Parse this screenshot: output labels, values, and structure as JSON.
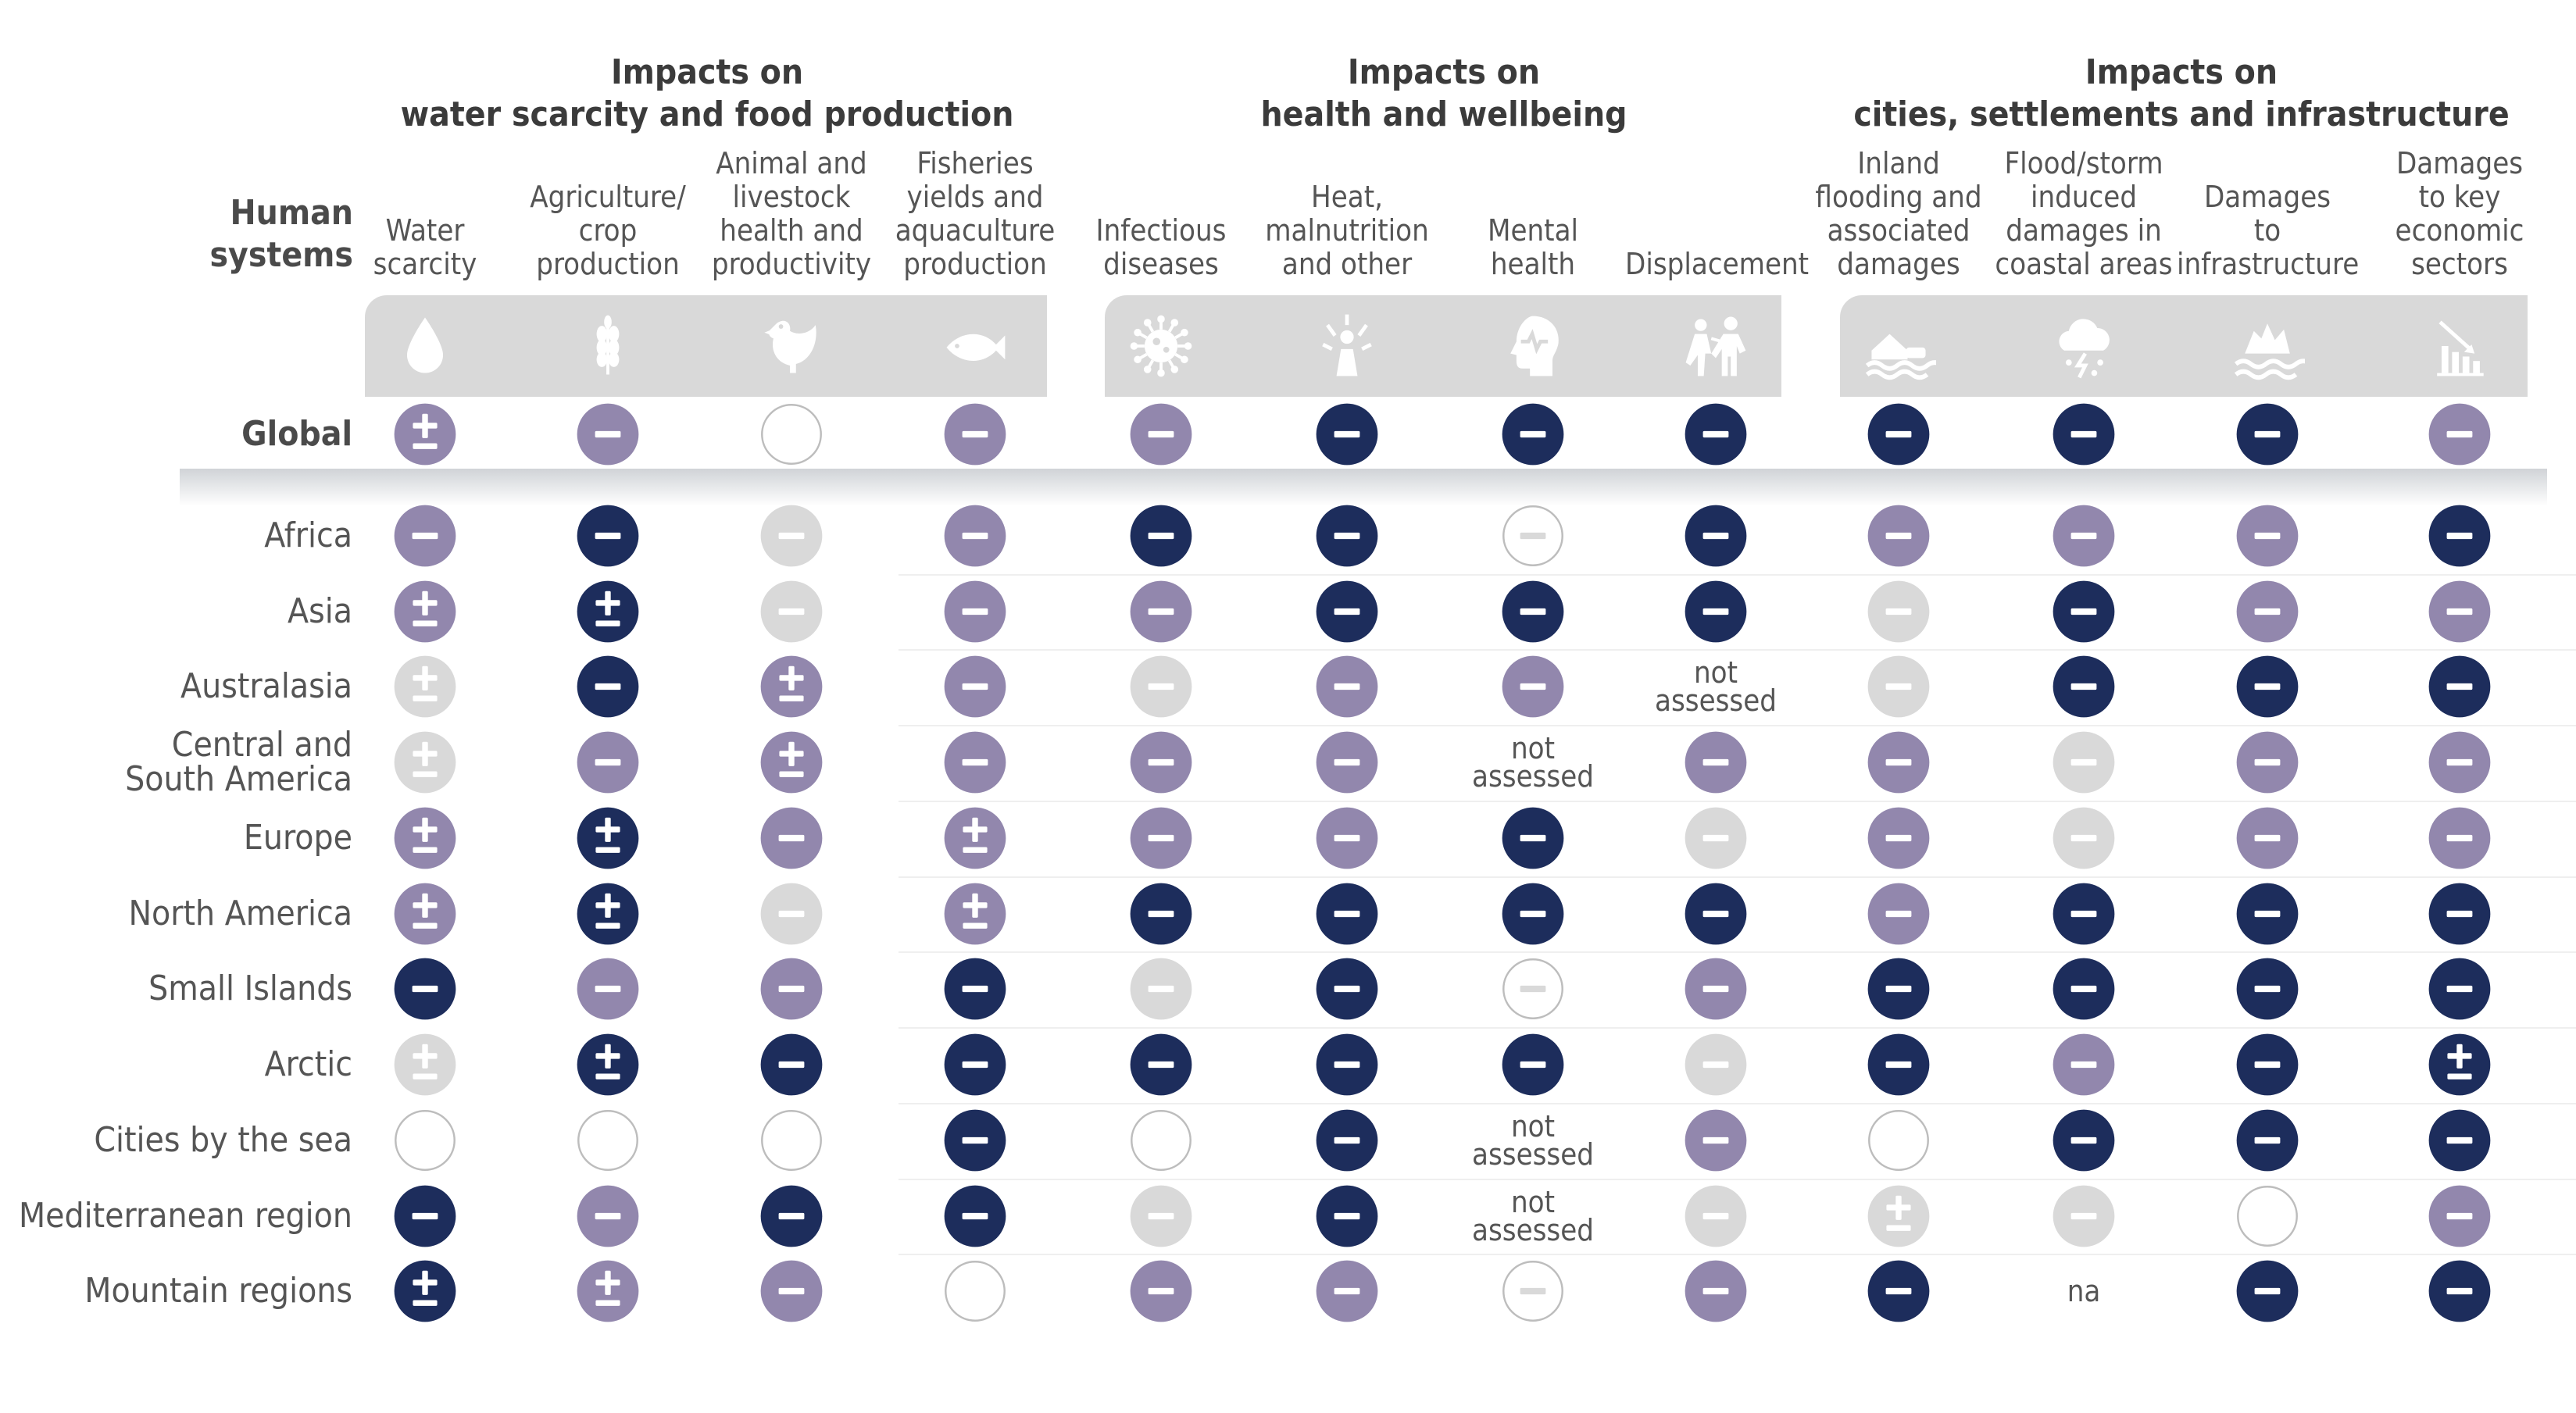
{
  "colors": {
    "strong_negative": "#1d2d5c",
    "moderate": "#9287ad",
    "low_confidence": "#d9d9d9",
    "open_circle_stroke": "#bdbdbd",
    "icon_bar": "#d9d9d9",
    "icon_glyph": "#ffffff"
  },
  "row_header": "Human\nsystems",
  "categories": [
    {
      "title_line1": "Impacts on",
      "title_line2": "water scarcity and food production"
    },
    {
      "title_line1": "Impacts on",
      "title_line2": "health and wellbeing"
    },
    {
      "title_line1": "Impacts on",
      "title_line2": "cities, settlements and infrastructure"
    }
  ],
  "columns": [
    {
      "label": "Water\nscarcity",
      "icon": "water-drop-icon"
    },
    {
      "label": "Agriculture/\ncrop\nproduction",
      "icon": "wheat-icon"
    },
    {
      "label": "Animal and\nlivestock\nhealth and\nproductivity",
      "icon": "chicken-icon"
    },
    {
      "label": "Fisheries\nyields and\naquaculture\nproduction",
      "icon": "fish-icon"
    },
    {
      "label": "Infectious\ndiseases",
      "icon": "virus-icon"
    },
    {
      "label": "Heat,\nmalnutrition\nand other",
      "icon": "heat-stress-icon"
    },
    {
      "label": "Mental\nhealth",
      "icon": "mental-health-icon"
    },
    {
      "label": "Displacement",
      "icon": "displacement-icon"
    },
    {
      "label": "Inland\nflooding and\nassociated\ndamages",
      "icon": "inland-flood-icon"
    },
    {
      "label": "Flood/storm\ninduced\ndamages in\ncoastal areas",
      "icon": "storm-cloud-icon"
    },
    {
      "label": "Damages\nto\ninfrastructure",
      "icon": "infrastructure-damage-icon"
    },
    {
      "label": "Damages\nto key\neconomic\nsectors",
      "icon": "declining-bars-icon"
    }
  ],
  "rows": [
    {
      "region": "Global",
      "cells": [
        "pm-mod",
        "m-mod",
        "open",
        "m-mod",
        "m-mod",
        "m-dark",
        "m-dark",
        "m-dark",
        "m-dark",
        "m-dark",
        "m-dark",
        "m-mod"
      ]
    },
    {
      "region": "Africa",
      "cells": [
        "m-mod",
        "m-dark",
        "m-light",
        "m-mod",
        "m-dark",
        "m-dark",
        "m-open",
        "m-dark",
        "m-mod",
        "m-mod",
        "m-mod",
        "m-dark"
      ]
    },
    {
      "region": "Asia",
      "cells": [
        "pm-mod",
        "pm-dark",
        "m-light",
        "m-mod",
        "m-mod",
        "m-dark",
        "m-dark",
        "m-dark",
        "m-light",
        "m-dark",
        "m-mod",
        "m-mod"
      ]
    },
    {
      "region": "Australasia",
      "cells": [
        "pm-light",
        "m-dark",
        "pm-mod",
        "m-mod",
        "m-light",
        "m-mod",
        "m-mod",
        "na",
        "m-light",
        "m-dark",
        "m-dark",
        "m-dark"
      ]
    },
    {
      "region": "Central and\nSouth America",
      "cells": [
        "pm-light",
        "m-mod",
        "pm-mod",
        "m-mod",
        "m-mod",
        "m-mod",
        "na",
        "m-mod",
        "m-mod",
        "m-light",
        "m-mod",
        "m-mod"
      ]
    },
    {
      "region": "Europe",
      "cells": [
        "pm-mod",
        "pm-dark",
        "m-mod",
        "pm-mod",
        "m-mod",
        "m-mod",
        "m-dark",
        "m-light",
        "m-mod",
        "m-light",
        "m-mod",
        "m-mod"
      ]
    },
    {
      "region": "North America",
      "cells": [
        "pm-mod",
        "pm-dark",
        "m-light",
        "pm-mod",
        "m-dark",
        "m-dark",
        "m-dark",
        "m-dark",
        "m-mod",
        "m-dark",
        "m-dark",
        "m-dark"
      ]
    },
    {
      "region": "Small Islands",
      "cells": [
        "m-dark",
        "m-mod",
        "m-mod",
        "m-dark",
        "m-light",
        "m-dark",
        "m-open",
        "m-mod",
        "m-dark",
        "m-dark",
        "m-dark",
        "m-dark"
      ]
    },
    {
      "region": "Arctic",
      "cells": [
        "pm-light",
        "pm-dark",
        "m-dark",
        "m-dark",
        "m-dark",
        "m-dark",
        "m-dark",
        "m-light",
        "m-dark",
        "m-mod",
        "m-dark",
        "pm-dark"
      ]
    },
    {
      "region": "Cities by the sea",
      "cells": [
        "open",
        "open",
        "open",
        "m-dark",
        "open",
        "m-dark",
        "na",
        "m-mod",
        "open",
        "m-dark",
        "m-dark",
        "m-dark"
      ]
    },
    {
      "region": "Mediterranean region",
      "cells": [
        "m-dark",
        "m-mod",
        "m-dark",
        "m-dark",
        "m-light",
        "m-dark",
        "na",
        "m-light",
        "pm-light",
        "m-light",
        "open",
        "m-mod"
      ]
    },
    {
      "region": "Mountain regions",
      "cells": [
        "pm-dark",
        "pm-mod",
        "m-mod",
        "open",
        "m-mod",
        "m-mod",
        "m-open",
        "m-mod",
        "m-dark",
        "na-short",
        "m-dark",
        "m-dark"
      ]
    }
  ],
  "labels": {
    "not_assessed": "not\nassessed",
    "na": "na"
  }
}
